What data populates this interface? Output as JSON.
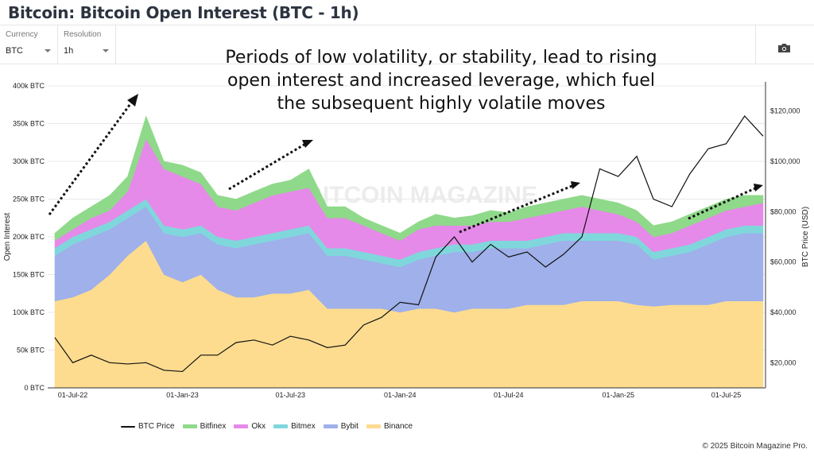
{
  "header": {
    "title": "Bitcoin: Bitcoin Open Interest (BTC - 1h)"
  },
  "controls": {
    "currency_label": "Currency",
    "currency_value": "BTC",
    "resolution_label": "Resolution",
    "resolution_value": "1h",
    "camera_icon": "camera-icon"
  },
  "annotation": {
    "line1": "Periods of low volatility, or stability, lead to rising",
    "line2": "open interest and increased leverage, which fuel",
    "line3": "the subsequent highly volatile moves"
  },
  "watermark": "BITCOIN MAGAZINE",
  "footer": {
    "copyright": "© 2025 Bitcoin Magazine Pro."
  },
  "chart_data": {
    "type": "area",
    "stacked": true,
    "ylabel": "Open Interest",
    "y2label": "BTC Price (USD)",
    "ylim": [
      0,
      400
    ],
    "y2lim": [
      10000,
      130000
    ],
    "yticks": [
      "0 BTC",
      "50k BTC",
      "100k BTC",
      "150k BTC",
      "200k BTC",
      "250k BTC",
      "300k BTC",
      "350k BTC",
      "400k BTC"
    ],
    "y2ticks": [
      "$20,000",
      "$40,000",
      "$60,000",
      "$80,000",
      "$100,000",
      "$120,000"
    ],
    "xticks": [
      "01-Jul-22",
      "01-Jan-23",
      "01-Jul-23",
      "01-Jan-24",
      "01-Jul-24",
      "01-Jan-25",
      "01-Jul-25"
    ],
    "grid": true,
    "legend_position": "bottom",
    "x": [
      "2022-06",
      "2022-07",
      "2022-08",
      "2022-09",
      "2022-10",
      "2022-11",
      "2022-12",
      "2023-01",
      "2023-02",
      "2023-03",
      "2023-04",
      "2023-05",
      "2023-06",
      "2023-07",
      "2023-08",
      "2023-09",
      "2023-10",
      "2023-11",
      "2023-12",
      "2024-01",
      "2024-02",
      "2024-03",
      "2024-04",
      "2024-05",
      "2024-06",
      "2024-07",
      "2024-08",
      "2024-09",
      "2024-10",
      "2024-11",
      "2024-12",
      "2025-01",
      "2025-02",
      "2025-03",
      "2025-04",
      "2025-05",
      "2025-06",
      "2025-07",
      "2025-08",
      "2025-09"
    ],
    "series": [
      {
        "name": "Binance",
        "color": "#fddc8f",
        "values": [
          115,
          120,
          130,
          150,
          175,
          195,
          150,
          140,
          150,
          130,
          120,
          120,
          125,
          125,
          130,
          105,
          105,
          105,
          105,
          100,
          105,
          105,
          100,
          105,
          105,
          105,
          110,
          110,
          110,
          115,
          115,
          115,
          110,
          108,
          110,
          110,
          110,
          115,
          115,
          115
        ]
      },
      {
        "name": "Bybit",
        "color": "#9fb0ea",
        "values": [
          60,
          70,
          70,
          60,
          50,
          45,
          55,
          60,
          55,
          60,
          65,
          70,
          70,
          75,
          75,
          70,
          70,
          65,
          60,
          60,
          65,
          70,
          80,
          75,
          80,
          80,
          75,
          80,
          85,
          80,
          80,
          80,
          80,
          62,
          65,
          70,
          80,
          85,
          90,
          90
        ]
      },
      {
        "name": "Bitmex",
        "color": "#7fd7dc",
        "values": [
          10,
          10,
          10,
          10,
          10,
          10,
          10,
          10,
          10,
          10,
          10,
          10,
          10,
          10,
          10,
          10,
          10,
          10,
          10,
          10,
          10,
          10,
          10,
          10,
          10,
          10,
          10,
          10,
          10,
          10,
          10,
          10,
          10,
          10,
          10,
          10,
          10,
          10,
          10,
          10
        ]
      },
      {
        "name": "Okx",
        "color": "#e58ae8",
        "values": [
          10,
          10,
          15,
          15,
          25,
          80,
          75,
          70,
          55,
          40,
          40,
          45,
          50,
          50,
          50,
          40,
          40,
          35,
          30,
          25,
          30,
          30,
          25,
          25,
          25,
          25,
          30,
          30,
          30,
          35,
          30,
          25,
          20,
          20,
          20,
          25,
          25,
          25,
          25,
          30
        ]
      },
      {
        "name": "Bitfinex",
        "color": "#8fd98a",
        "values": [
          10,
          15,
          15,
          20,
          20,
          30,
          10,
          15,
          15,
          15,
          15,
          15,
          15,
          15,
          25,
          15,
          15,
          10,
          10,
          10,
          10,
          15,
          10,
          13,
          15,
          12,
          15,
          15,
          15,
          15,
          15,
          15,
          15,
          15,
          15,
          15,
          15,
          15,
          15,
          10
        ]
      },
      {
        "name": "BTC Price",
        "color": "#111111",
        "axis": "right",
        "values": [
          30000,
          20000,
          23000,
          20000,
          19500,
          20000,
          17000,
          16500,
          23000,
          23000,
          28000,
          29000,
          27000,
          30500,
          29000,
          26000,
          27000,
          35000,
          38000,
          44000,
          43000,
          62000,
          70000,
          60000,
          67000,
          62000,
          64000,
          58000,
          63000,
          70000,
          97000,
          94000,
          102000,
          85000,
          82000,
          95000,
          105000,
          107000,
          118000,
          110000
        ]
      }
    ]
  }
}
